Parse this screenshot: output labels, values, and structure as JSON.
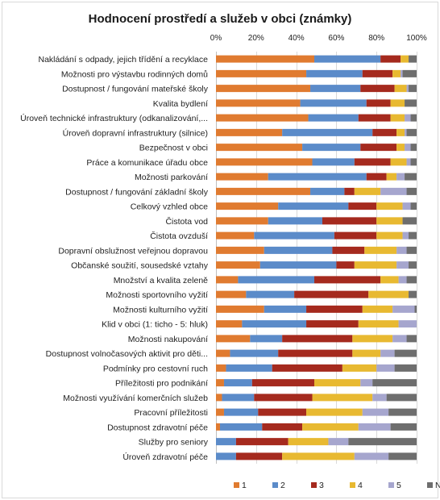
{
  "chart_data": {
    "type": "bar",
    "orientation": "horizontal-stacked-100",
    "title": "Hodnocení prostředí a služeb v obci (známky)",
    "xlim": [
      0,
      100
    ],
    "x_ticks": [
      "0%",
      "20%",
      "40%",
      "60%",
      "80%",
      "100%"
    ],
    "legend_position": "bottom",
    "grid": true,
    "categories": [
      "Nakládání s odpady, jejich třídění a recyklace",
      "Možnosti pro výstavbu rodinných domů",
      "Dostupnost / fungování mateřské školy",
      "Kvalita bydlení",
      "Úroveň technické infrastruktury (odkanalizování,...",
      "Úroveň dopravní infrastruktury (silnice)",
      "Bezpečnost v obci",
      "Práce a komunikace úřadu obce",
      "Možnosti parkování",
      "Dostupnost / fungování základní školy",
      "Celkový vzhled obce",
      "Čistota vod",
      "Čistota ovzduší",
      "Dopravní obslužnost veřejnou dopravou",
      "Občanské soužití, sousedské vztahy",
      "Množství a kvalita zeleně",
      "Možnosti sportovního vyžití",
      "Možnosti kulturního vyžití",
      "Klid v obci (1: ticho - 5: hluk)",
      "Možnosti nakupování",
      "Dostupnost volnočasových aktivit pro děti...",
      "Podmínky pro cestovní ruch",
      "Příležitosti pro podnikání",
      "Možnosti využívání komerčních služeb",
      "Pracovní příležitosti",
      "Dostupnost zdravotní péče",
      "Služby pro seniory",
      "Úroveň zdravotní péče"
    ],
    "series": [
      {
        "name": "1",
        "color": "#E07B30",
        "values": [
          49,
          45,
          47,
          42,
          46,
          33,
          43,
          48,
          26,
          47,
          31,
          26,
          19,
          24,
          22,
          11,
          15,
          24,
          13,
          17,
          7,
          5,
          4,
          3,
          4,
          2,
          0,
          0
        ]
      },
      {
        "name": "2",
        "color": "#5B8BC9",
        "values": [
          33,
          28,
          25,
          33,
          25,
          45,
          29,
          21,
          49,
          17,
          35,
          27,
          40,
          34,
          38,
          38,
          24,
          21,
          32,
          16,
          24,
          23,
          14,
          16,
          17,
          21,
          10,
          10
        ]
      },
      {
        "name": "3",
        "color": "#A52A1E",
        "values": [
          10,
          15,
          17,
          12,
          16,
          12,
          18,
          18,
          10,
          5,
          14,
          27,
          21,
          16,
          9,
          33,
          37,
          28,
          26,
          35,
          37,
          35,
          31,
          29,
          24,
          20,
          26,
          23
        ]
      },
      {
        "name": "4",
        "color": "#E8B931",
        "values": [
          4,
          4,
          6,
          7,
          7,
          4,
          4,
          8,
          5,
          13,
          13,
          13,
          13,
          16,
          21,
          9,
          20,
          15,
          20,
          20,
          14,
          17,
          23,
          30,
          28,
          28,
          20,
          36
        ]
      },
      {
        "name": "5",
        "color": "#A6A6CE",
        "values": [
          0,
          1,
          1,
          0,
          3,
          1,
          3,
          2,
          4,
          13,
          4,
          0,
          3,
          5,
          6,
          4,
          0,
          11,
          9,
          7,
          7,
          9,
          6,
          7,
          13,
          16,
          10,
          17
        ]
      },
      {
        "name": "Nevím",
        "color": "#6E6E6E",
        "values": [
          4,
          7,
          4,
          6,
          3,
          5,
          3,
          3,
          6,
          5,
          3,
          7,
          4,
          5,
          4,
          5,
          4,
          1,
          0,
          5,
          11,
          11,
          22,
          15,
          14,
          13,
          34,
          14
        ]
      }
    ]
  }
}
